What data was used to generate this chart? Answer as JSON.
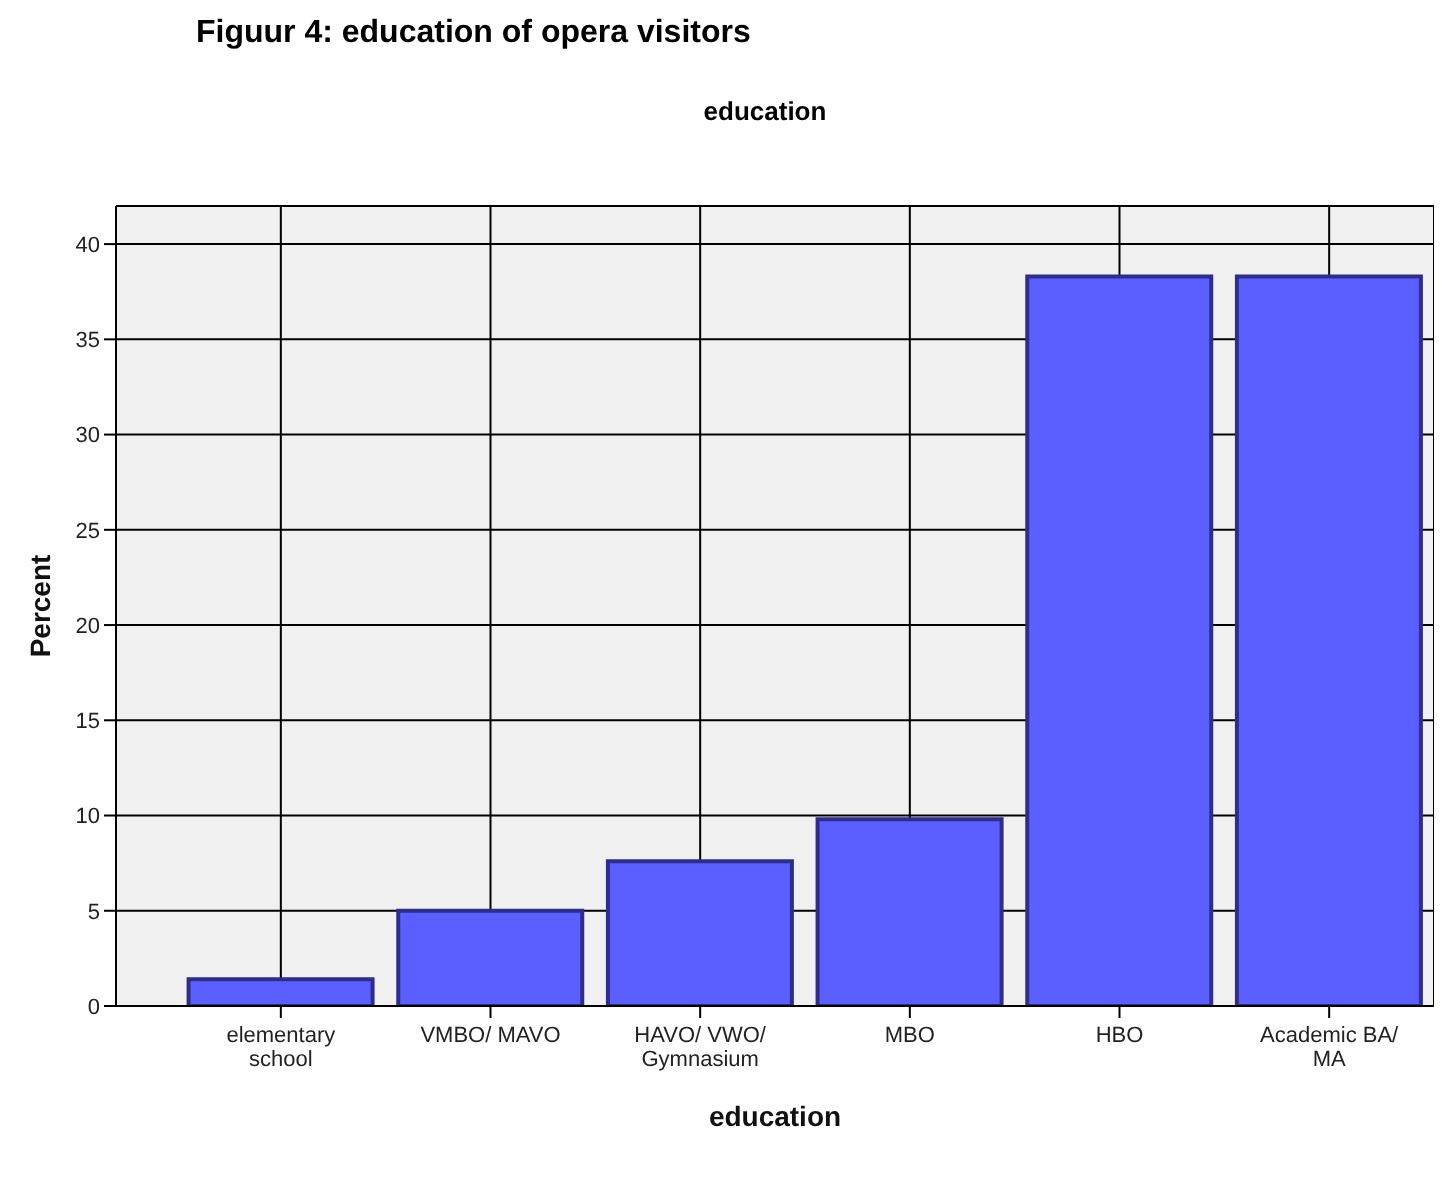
{
  "chart_data": {
    "type": "bar",
    "title": "Figuur 4: education of opera visitors",
    "subtitle": "education",
    "xlabel": "education",
    "ylabel": "Percent",
    "categories": [
      "elementary school",
      "VMBO/ MAVO",
      "HAVO/ VWO/ Gymnasium",
      "MBO",
      "HBO",
      "Academic BA/ MA"
    ],
    "values": [
      1.4,
      5.0,
      7.6,
      9.8,
      38.3,
      38.3
    ],
    "color": "#5b5fff",
    "ylim": [
      0,
      42
    ],
    "yticks": [
      0,
      5,
      10,
      15,
      20,
      25,
      30,
      35,
      40
    ],
    "grid": true
  }
}
